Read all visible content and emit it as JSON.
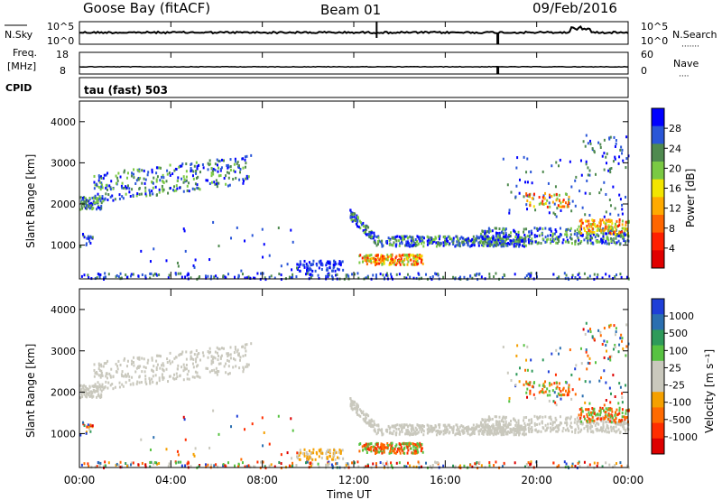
{
  "header": {
    "station": "Goose Bay (fitACF)",
    "beam": "Beam 01",
    "date": "09/Feb/2016"
  },
  "nsky_panel": {
    "left_label": "N.Sky",
    "right_label": "N.Search",
    "left_ticks": [
      "10^5",
      "10^0"
    ],
    "right_ticks": [
      "10^5",
      "10^0"
    ],
    "right_legend": "·······"
  },
  "freq_panel": {
    "left_label_1": "Freq.",
    "left_label_2": "[MHz]",
    "right_label": "Nave",
    "left_ticks": [
      "18",
      "8"
    ],
    "right_ticks": [
      "60",
      "0"
    ],
    "right_legend": "····"
  },
  "cpid_panel": {
    "label": "CPID",
    "value": "tau (fast) 503"
  },
  "chart_data": [
    {
      "type": "heatmap",
      "name": "power",
      "ylabel": "Slant Range [km]",
      "yticks": [
        "4000",
        "3000",
        "2000",
        "1000"
      ],
      "ylim": [
        180,
        4500
      ],
      "colorbar_label": "Power [dB]",
      "colorbar_ticks": [
        "28",
        "24",
        "20",
        "16",
        "12",
        "8",
        "4"
      ],
      "colors": [
        "#0000ff",
        "#2a56d8",
        "#4f8a4f",
        "#7ac943",
        "#f2e500",
        "#ffaa00",
        "#ff6600",
        "#ff2000",
        "#e00000"
      ]
    },
    {
      "type": "heatmap",
      "name": "velocity",
      "ylabel": "Slant Range [km]",
      "yticks": [
        "4000",
        "3000",
        "2000",
        "1000"
      ],
      "ylim": [
        180,
        4500
      ],
      "colorbar_label": "Velocity [m s⁻¹]",
      "colorbar_ticks": [
        "1000",
        "500",
        "100",
        "25",
        "-25",
        "-100",
        "-500",
        "-1000"
      ],
      "colors": [
        "#1f3fd8",
        "#2b6fb0",
        "#2e9a5a",
        "#57c241",
        "#c9c8bd",
        "#c9c8bd",
        "#f5a000",
        "#ff6a00",
        "#ff2e00",
        "#dd0000"
      ]
    }
  ],
  "x_axis": {
    "ticks": [
      "00:00",
      "04:00",
      "08:00",
      "12:00",
      "16:00",
      "20:00",
      "00:00"
    ],
    "label": "Time UT"
  }
}
